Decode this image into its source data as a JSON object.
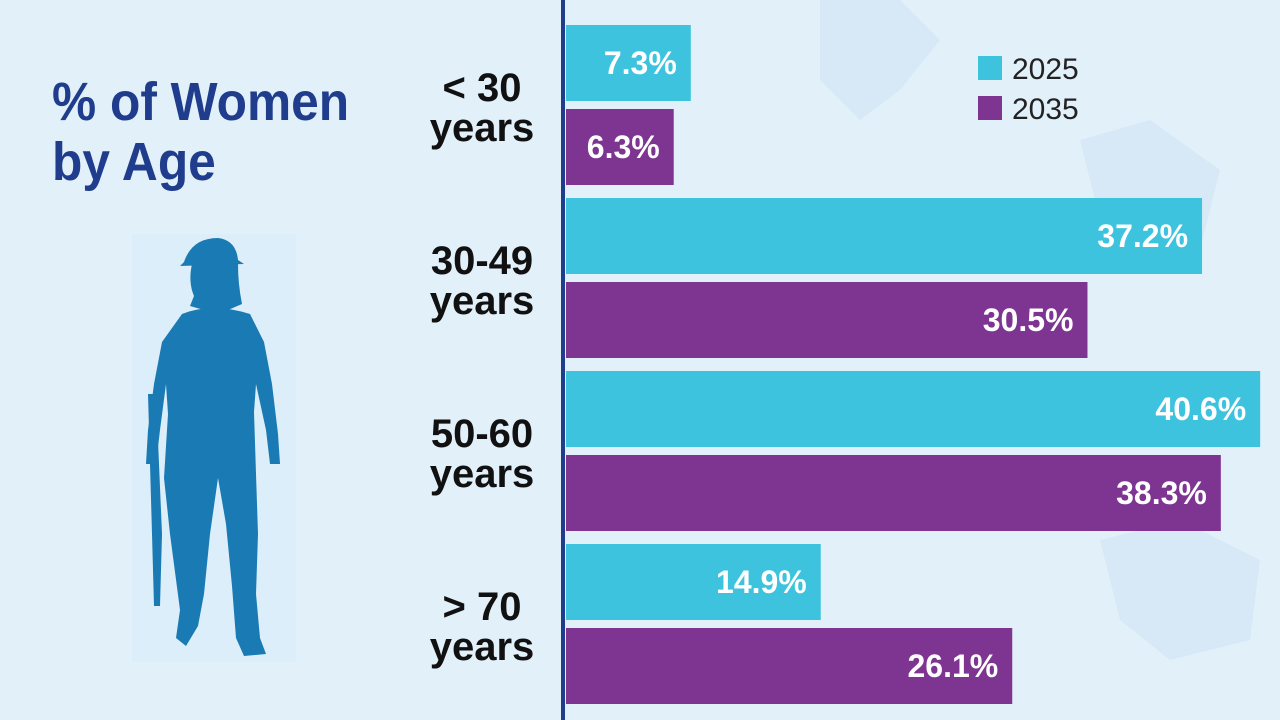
{
  "title": "% of Women\nby Age",
  "colors": {
    "series_2025": "#3dc3de",
    "series_2035": "#7e3591",
    "title": "#1f3d8c",
    "figure": "#1a7ab3",
    "background": "#e2f0fa"
  },
  "icons": {
    "figure": "woman-soldier-silhouette-icon"
  },
  "chart_data": {
    "type": "bar",
    "orientation": "horizontal",
    "title": "% of Women by Age",
    "categories": [
      {
        "line1": "< 30",
        "line2": "years"
      },
      {
        "line1": "30-49",
        "line2": "years"
      },
      {
        "line1": "50-60",
        "line2": "years"
      },
      {
        "line1": "> 70",
        "line2": "years"
      }
    ],
    "series": [
      {
        "name": "2025",
        "color": "#3dc3de",
        "values": [
          7.3,
          37.2,
          40.6,
          14.9
        ]
      },
      {
        "name": "2035",
        "color": "#7e3591",
        "values": [
          6.3,
          30.5,
          38.3,
          26.1
        ]
      }
    ],
    "value_suffix": "%",
    "xlim": [
      0,
      41
    ],
    "legend": {
      "position": "top-right",
      "entries": [
        "2025",
        "2035"
      ]
    },
    "grid": false
  }
}
